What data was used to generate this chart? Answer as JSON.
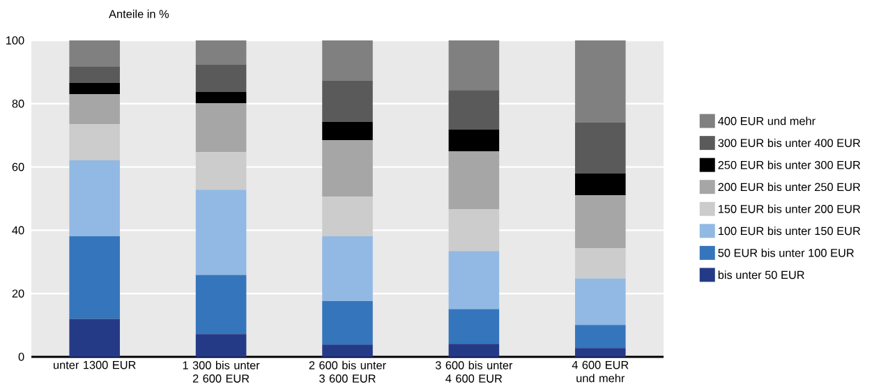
{
  "chart_data": {
    "type": "bar",
    "stacked": true,
    "ylabel": "Anteile in %",
    "categories": [
      "unter 1300 EUR",
      "1 300 bis unter 2 600 EUR",
      "2 600 bis unter 3 600 EUR",
      "3 600 bis unter 4 600 EUR",
      "4 600 EUR und mehr"
    ],
    "series": [
      {
        "name": "bis unter 50 EUR",
        "color": "#253a87",
        "values": [
          12.0,
          7.2,
          3.9,
          4.1,
          2.8
        ]
      },
      {
        "name": "50 EUR bis unter 100 EUR",
        "color": "#3575bc",
        "values": [
          26.1,
          18.7,
          13.7,
          11.0,
          7.3
        ]
      },
      {
        "name": "100 EUR bis unter 150 EUR",
        "color": "#92b9e3",
        "values": [
          24.0,
          26.9,
          20.5,
          18.3,
          14.7
        ]
      },
      {
        "name": "150 EUR bis unter 200 EUR",
        "color": "#cccccc",
        "values": [
          11.4,
          11.9,
          12.5,
          13.3,
          9.5
        ]
      },
      {
        "name": "200 EUR bis unter 250 EUR",
        "color": "#a6a6a6",
        "values": [
          9.5,
          15.5,
          17.9,
          18.3,
          16.8
        ]
      },
      {
        "name": "250 EUR bis unter 300 EUR",
        "color": "#000000",
        "values": [
          3.6,
          3.5,
          5.7,
          6.8,
          6.8
        ]
      },
      {
        "name": "300 EUR bis unter 400 EUR",
        "color": "#5a5a5a",
        "values": [
          5.2,
          8.6,
          13.0,
          12.5,
          16.1
        ]
      },
      {
        "name": "400 EUR und mehr",
        "color": "#808080",
        "values": [
          8.2,
          7.7,
          12.8,
          15.7,
          26.0
        ]
      }
    ],
    "ylim": [
      0,
      100
    ],
    "yticks": [
      0,
      20,
      40,
      60,
      80,
      100
    ],
    "grid": "y",
    "legend": "right"
  }
}
